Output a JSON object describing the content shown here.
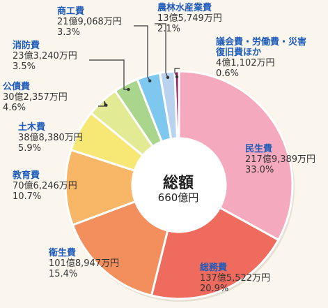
{
  "chart_data": {
    "type": "pie",
    "center": {
      "label": "総額",
      "value": "660億円"
    },
    "slices": [
      {
        "name": "民生費",
        "amount": "217億9,389万円",
        "percent": "33.0%",
        "value": 33.0,
        "color": "#f4a9be"
      },
      {
        "name": "総務費",
        "amount": "137億5,522万円",
        "percent": "20.9%",
        "value": 20.9,
        "color": "#ee6b5e"
      },
      {
        "name": "衛生費",
        "amount": "101億8,947万円",
        "percent": "15.4%",
        "value": 15.4,
        "color": "#f28f5c"
      },
      {
        "name": "教育費",
        "amount": "70億6,246万円",
        "percent": "10.7%",
        "value": 10.7,
        "color": "#f8b766"
      },
      {
        "name": "土木費",
        "amount": "38億8,380万円",
        "percent": "5.9%",
        "value": 5.9,
        "color": "#f7e775"
      },
      {
        "name": "公債費",
        "amount": "30億2,357万円",
        "percent": "4.6%",
        "value": 4.6,
        "color": "#e3ea94"
      },
      {
        "name": "消防費",
        "amount": "23億3,240万円",
        "percent": "3.5%",
        "value": 3.5,
        "color": "#a9d58c"
      },
      {
        "name": "商工費",
        "amount": "21億9,068万円",
        "percent": "3.3%",
        "value": 3.3,
        "color": "#7ec8ef"
      },
      {
        "name": "農林水産業費",
        "amount": "13億5,749万円",
        "percent": "2.1%",
        "value": 2.1,
        "color": "#b9d3ef"
      },
      {
        "name": "議会費・労働費・災害復旧費ほか",
        "name_lines": [
          "議会費・労働費・災害",
          "復旧費ほか"
        ],
        "amount": "4億1,102万円",
        "percent": "0.6%",
        "value": 0.6,
        "color": "#a2175e"
      }
    ]
  }
}
